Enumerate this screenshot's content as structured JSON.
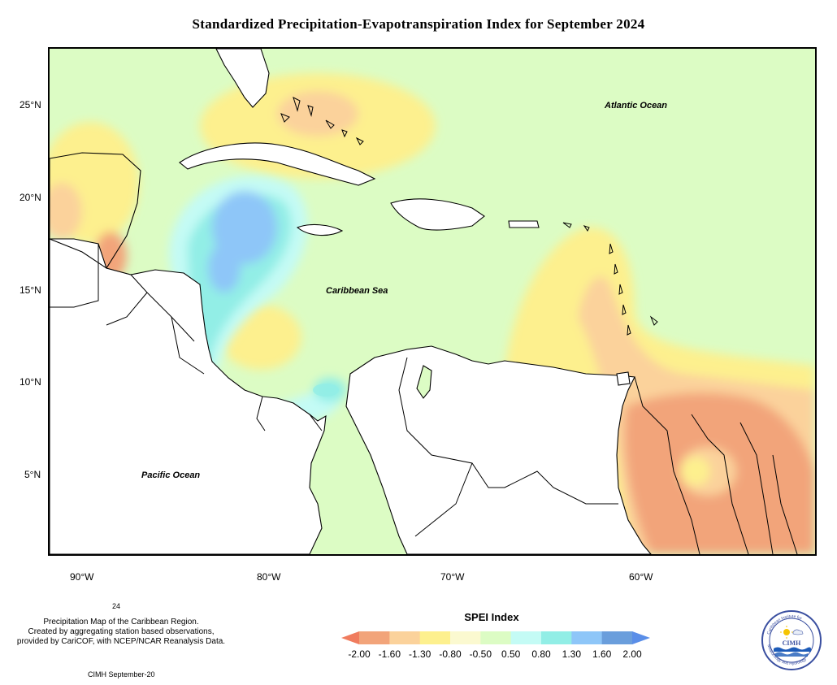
{
  "title": "Standardized Precipitation-Evapotranspiration Index for September 2024",
  "map": {
    "lat_labels": [
      "25°N",
      "20°N",
      "15°N",
      "10°N",
      "5°N"
    ],
    "lon_labels": [
      "90°W",
      "80°W",
      "70°W",
      "60°W"
    ],
    "ocean_labels": {
      "atlantic": "Atlantic Ocean",
      "caribbean": "Caribbean Sea",
      "pacific": "Pacific Ocean"
    },
    "background_color": "#dcfcc4"
  },
  "legend": {
    "title": "SPEI Index",
    "ticks": [
      "-2.00",
      "-1.60",
      "-1.30",
      "-0.80",
      "-0.50",
      "0.50",
      "0.80",
      "1.30",
      "1.60",
      "2.00"
    ],
    "colors": [
      "#f07c5e",
      "#f2a47a",
      "#fbd29b",
      "#fdf08e",
      "#fbf9d0",
      "#dcfcc4",
      "#c4fbf5",
      "#92eee6",
      "#8ec6f8",
      "#6a9edc",
      "#5a8ee8"
    ]
  },
  "footer": {
    "note_number": "24",
    "description_lines": [
      "Precipitation Map of the Caribbean Region.",
      "Created by aggregating station based observations,",
      "provided by CariCOF, with NCEP/NCAR Reanalysis Data."
    ],
    "credit": "CIMH September-20"
  },
  "logo": {
    "text": "CIMH",
    "ring_text_top": "Caribbean Institute for",
    "ring_text_bottom": "Meteorology and Hydrology"
  }
}
